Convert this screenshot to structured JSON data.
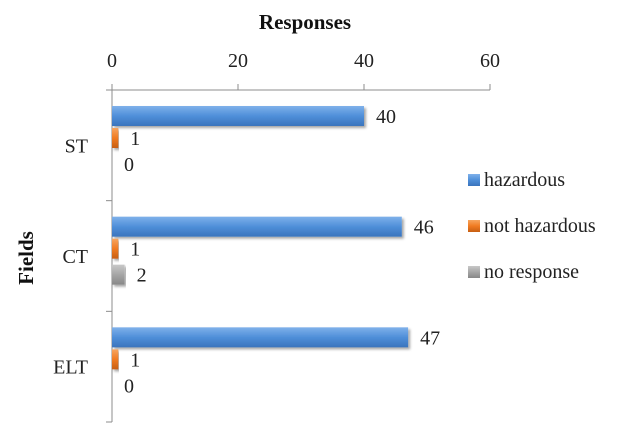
{
  "chart_data": {
    "type": "bar",
    "orientation": "horizontal",
    "title": "",
    "xlabel": "Responses",
    "ylabel": "Fields",
    "xlim": [
      0,
      60
    ],
    "x_ticks": [
      0,
      20,
      40,
      60
    ],
    "x_axis_position": "top",
    "grid": false,
    "categories": [
      "ST",
      "CT",
      "ELT"
    ],
    "series": [
      {
        "name": "hazardous",
        "values": [
          40,
          46,
          47
        ],
        "color": "#4f8fd9"
      },
      {
        "name": "not hazardous",
        "values": [
          1,
          1,
          1
        ],
        "color": "#f07b22"
      },
      {
        "name": "no response",
        "values": [
          0,
          2,
          0
        ],
        "color": "#a6a6a6"
      }
    ],
    "legend_position": "right",
    "data_labels": true
  }
}
